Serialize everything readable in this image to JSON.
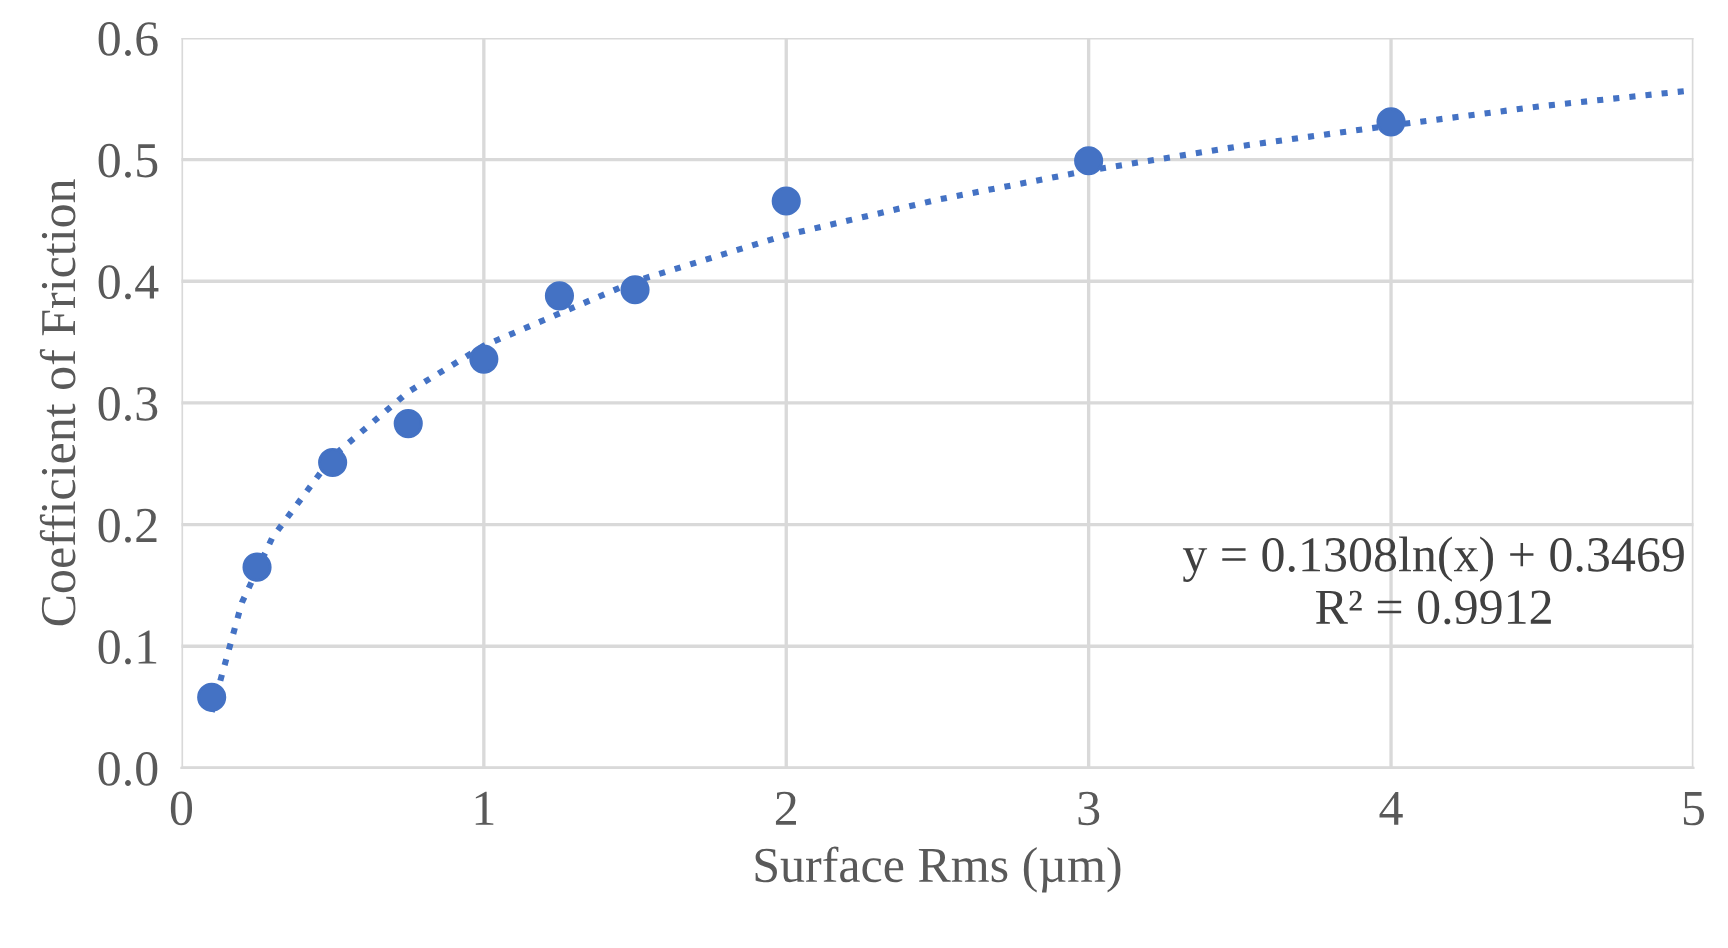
{
  "chart_data": {
    "type": "scatter",
    "xlabel": "Surface Rms (µm)",
    "ylabel": "Coefficient of Friction",
    "xlim": [
      0,
      5
    ],
    "xticks": [
      0,
      1,
      2,
      3,
      4,
      5
    ],
    "ylim": [
      0,
      0.6
    ],
    "yticks": [
      {
        "value": 0,
        "label": "0.0"
      },
      {
        "value": 0.1,
        "label": "0.1"
      },
      {
        "value": 0.2,
        "label": "0.2"
      },
      {
        "value": 0.3,
        "label": "0.3"
      },
      {
        "value": 0.4,
        "label": "0.4"
      },
      {
        "value": 0.5,
        "label": "0.5"
      },
      {
        "value": 0.6,
        "label": "0.6"
      }
    ],
    "grid": true,
    "series": [
      {
        "marker": "circle",
        "color": "#4472c4",
        "x": [
          0.1,
          0.25,
          0.5,
          0.75,
          1,
          1.25,
          1.5,
          2,
          3,
          4
        ],
        "values": [
          0.058,
          0.165,
          0.251,
          0.283,
          0.336,
          0.388,
          0.393,
          0.466,
          0.499,
          0.531
        ]
      },
      {
        "type": "line",
        "marker": "none",
        "line_style": "dotted",
        "color": "#4472c4",
        "x": [
          0.1,
          0.2,
          0.3,
          0.5,
          0.75,
          1,
          1.5,
          2,
          2.5,
          3,
          3.5,
          4,
          4.5,
          5
        ],
        "values": [
          0.046,
          0.136,
          0.189,
          0.256,
          0.309,
          0.347,
          0.4,
          0.438,
          0.467,
          0.491,
          0.511,
          0.528,
          0.544,
          0.557
        ]
      }
    ],
    "annotations": [
      "y = 0.1308ln(x) + 0.3469\nR² = 0.9912"
    ]
  }
}
